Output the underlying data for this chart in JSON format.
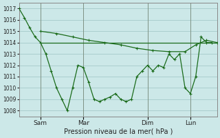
{
  "xlabel": "Pression niveau de la mer( hPa )",
  "ylim": [
    1007.5,
    1017.5
  ],
  "yticks": [
    1008,
    1009,
    1010,
    1011,
    1012,
    1013,
    1014,
    1015,
    1016,
    1017
  ],
  "bg_color": "#cce8e8",
  "grid_color": "#aacece",
  "line_color": "#1a6b1a",
  "xtick_labels": [
    "Sam",
    "Mar",
    "Dim",
    "Lun"
  ],
  "xtick_positions": [
    8,
    24,
    48,
    64
  ],
  "xlim": [
    0,
    74
  ],
  "line1_x": [
    0,
    2,
    4,
    6,
    8,
    10,
    12,
    14,
    16,
    18,
    20,
    22,
    24,
    26,
    28,
    30,
    32,
    34,
    36,
    38,
    40,
    42,
    44,
    46,
    48,
    50,
    52,
    54,
    56,
    58,
    60,
    62,
    64,
    66,
    68,
    70,
    72
  ],
  "line1_y": [
    1017,
    1016.2,
    1015.3,
    1014.5,
    1014,
    1013,
    1011.5,
    1010,
    1009,
    1008,
    1010,
    1012,
    1011.8,
    1010.5,
    1009,
    1008.8,
    1009,
    1009.2,
    1009.5,
    1009,
    1008.8,
    1009,
    1011,
    1011.5,
    1012,
    1011.5,
    1012,
    1011.8,
    1013,
    1012.5,
    1013,
    1010,
    1009.5,
    1011,
    1014.5,
    1014,
    1014
  ],
  "line2_x": [
    8,
    14,
    20,
    26,
    32,
    38,
    44,
    50,
    56,
    62,
    66,
    70,
    74
  ],
  "line2_y": [
    1015,
    1014.8,
    1014.5,
    1014.2,
    1014.0,
    1013.8,
    1013.5,
    1013.3,
    1013.2,
    1013.2,
    1013.8,
    1014.2,
    1014.0
  ],
  "line3_x": [
    8,
    12,
    16,
    20,
    24,
    28,
    32,
    36,
    40,
    44,
    48,
    52,
    56,
    60,
    64,
    68,
    72,
    74
  ],
  "line3_y": [
    1014,
    1014,
    1014,
    1014,
    1014,
    1014,
    1014,
    1014,
    1014,
    1014,
    1014,
    1014,
    1014,
    1014,
    1014,
    1014,
    1014,
    1014
  ]
}
